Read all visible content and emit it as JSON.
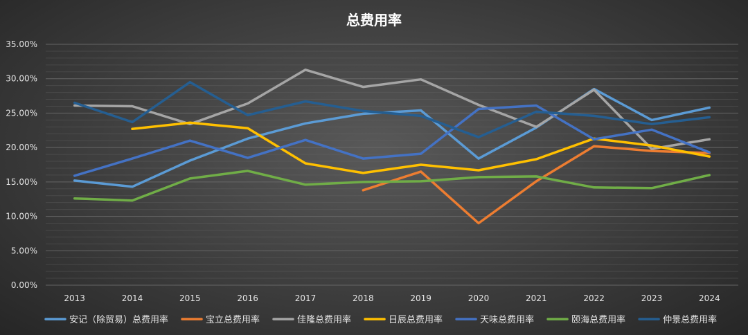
{
  "chart_data": {
    "type": "line",
    "title": "总费用率",
    "xlabel": "",
    "ylabel": "",
    "categories": [
      "2013",
      "2014",
      "2015",
      "2016",
      "2017",
      "2018",
      "2019",
      "2020",
      "2021",
      "2022",
      "2023",
      "2024"
    ],
    "ylim": [
      0,
      35
    ],
    "yticks": [
      "0.00%",
      "5.00%",
      "10.00%",
      "15.00%",
      "20.00%",
      "25.00%",
      "30.00%",
      "35.00%"
    ],
    "grid": true,
    "legend": "bottom",
    "series": [
      {
        "name": "安记（除贸易）总费用率",
        "color": "#5b9bd5",
        "values": [
          15.2,
          14.3,
          18.1,
          21.3,
          23.5,
          24.9,
          25.4,
          18.4,
          22.9,
          28.5,
          24.0,
          25.8
        ]
      },
      {
        "name": "宝立总费用率",
        "color": "#ed7d31",
        "values": [
          null,
          null,
          null,
          null,
          null,
          13.8,
          16.5,
          9.0,
          15.1,
          20.2,
          19.5,
          19.2
        ]
      },
      {
        "name": "佳隆总费用率",
        "color": "#a5a5a5",
        "values": [
          26.1,
          26.0,
          23.4,
          26.4,
          31.3,
          28.8,
          29.9,
          26.2,
          23.0,
          28.4,
          19.8,
          21.2
        ]
      },
      {
        "name": "日辰总费用率",
        "color": "#ffc000",
        "values": [
          null,
          22.7,
          23.6,
          22.8,
          17.7,
          16.3,
          17.5,
          16.7,
          18.3,
          21.3,
          20.3,
          18.7
        ]
      },
      {
        "name": "天味总费用率",
        "color": "#4472c4",
        "values": [
          15.9,
          18.4,
          21.0,
          18.5,
          21.1,
          18.4,
          19.1,
          25.6,
          26.1,
          21.2,
          22.6,
          19.3
        ]
      },
      {
        "name": "颐海总费用率",
        "color": "#70ad47",
        "values": [
          12.6,
          12.3,
          15.5,
          16.6,
          14.6,
          15.0,
          15.1,
          15.7,
          15.8,
          14.2,
          14.1,
          16.0
        ]
      },
      {
        "name": "仲景总费用率",
        "color": "#255e91",
        "values": [
          26.5,
          23.7,
          29.5,
          24.7,
          26.7,
          25.3,
          24.6,
          21.5,
          25.2,
          24.6,
          23.4,
          24.4
        ]
      }
    ]
  }
}
